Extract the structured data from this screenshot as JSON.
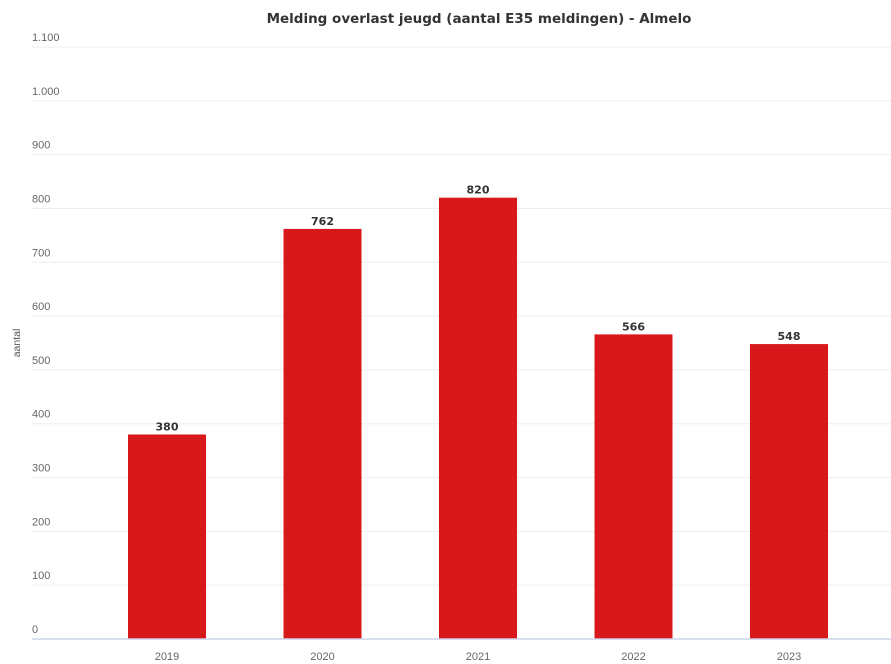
{
  "chart_data": {
    "type": "bar",
    "title": "Melding overlast jeugd (aantal E35 meldingen) - Almelo",
    "xlabel": "",
    "ylabel": "aantal",
    "categories": [
      "2019",
      "2020",
      "2021",
      "2022",
      "2023"
    ],
    "values": [
      380,
      762,
      820,
      566,
      548
    ],
    "data_labels": [
      "380",
      "762",
      "820",
      "566",
      "548"
    ],
    "ylim": [
      0,
      1100
    ],
    "yticks": [
      0,
      100,
      200,
      300,
      400,
      500,
      600,
      700,
      800,
      900,
      1000,
      1100
    ],
    "ytick_labels": [
      "0",
      "100",
      "200",
      "300",
      "400",
      "500",
      "600",
      "700",
      "800",
      "900",
      "1.000",
      "1.100"
    ],
    "grid": true,
    "legend": "none",
    "bar_color": "#d7191c"
  }
}
